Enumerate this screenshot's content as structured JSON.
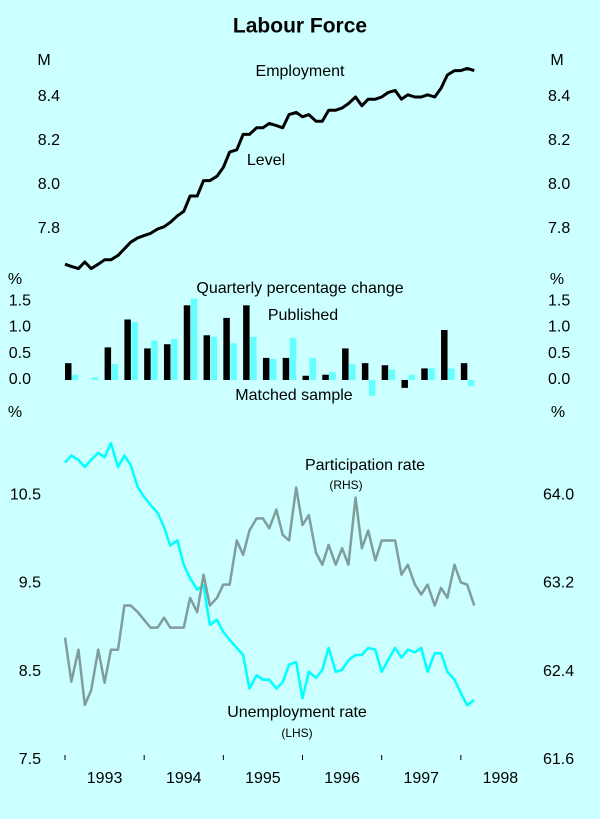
{
  "title": "Labour Force",
  "chart_data": [
    {
      "type": "line",
      "title": "Employment",
      "y_unit": "M",
      "x": [
        1993,
        1993.08,
        1993.17,
        1993.25,
        1993.33,
        1993.42,
        1993.5,
        1993.58,
        1993.67,
        1993.75,
        1993.83,
        1993.92,
        1994,
        1994.08,
        1994.17,
        1994.25,
        1994.33,
        1994.42,
        1994.5,
        1994.58,
        1994.67,
        1994.75,
        1994.83,
        1994.92,
        1995,
        1995.08,
        1995.17,
        1995.25,
        1995.33,
        1995.42,
        1995.5,
        1995.58,
        1995.67,
        1995.75,
        1995.83,
        1995.92,
        1996,
        1996.08,
        1996.17,
        1996.25,
        1996.33,
        1996.42,
        1996.5,
        1996.58,
        1996.67,
        1996.75,
        1996.83,
        1996.92,
        1997,
        1997.08,
        1997.17,
        1997.25,
        1997.33,
        1997.42,
        1997.5,
        1997.58,
        1997.67,
        1997.75,
        1997.83,
        1997.92,
        1998,
        1998.08,
        1998.17
      ],
      "xlim": [
        1993,
        1999
      ],
      "ylim": [
        7.6,
        8.6
      ],
      "yticks": [
        7.8,
        {
          "value": 8,
          "label": "8.0"
        },
        8.2,
        8.4
      ],
      "series": [
        {
          "name": "Level",
          "color": "#000000",
          "values": [
            7.64,
            7.63,
            7.62,
            7.65,
            7.62,
            7.64,
            7.66,
            7.66,
            7.68,
            7.71,
            7.74,
            7.76,
            7.77,
            7.78,
            7.8,
            7.81,
            7.83,
            7.86,
            7.88,
            7.95,
            7.95,
            8.02,
            8.02,
            8.04,
            8.08,
            8.15,
            8.16,
            8.23,
            8.23,
            8.26,
            8.26,
            8.28,
            8.27,
            8.26,
            8.32,
            8.33,
            8.31,
            8.32,
            8.29,
            8.29,
            8.34,
            8.34,
            8.35,
            8.37,
            8.4,
            8.36,
            8.39,
            8.39,
            8.4,
            8.42,
            8.43,
            8.39,
            8.41,
            8.4,
            8.4,
            8.41,
            8.4,
            8.44,
            8.5,
            8.52,
            8.52,
            8.53,
            8.52
          ]
        }
      ]
    },
    {
      "type": "bar",
      "title": "Quarterly percentage change",
      "y_unit": "%",
      "x": [
        1993,
        1993.25,
        1993.5,
        1993.75,
        1994,
        1994.25,
        1994.5,
        1994.75,
        1995,
        1995.25,
        1995.5,
        1995.75,
        1996,
        1996.25,
        1996.5,
        1996.75,
        1997,
        1997.25,
        1997.5,
        1997.75,
        1998
      ],
      "xlim": [
        1993,
        1999
      ],
      "ylim": [
        -0.4,
        1.7
      ],
      "yticks": [
        {
          "value": 0,
          "label": "0.0"
        },
        0.5,
        {
          "value": 1,
          "label": "1.0"
        },
        1.5
      ],
      "series": [
        {
          "name": "Published",
          "color": "#000000",
          "values": [
            0.32,
            0,
            0.62,
            1.15,
            0.6,
            0.68,
            1.42,
            0.85,
            1.18,
            1.42,
            0.42,
            0.42,
            0.08,
            0.1,
            0.6,
            0.32,
            0.28,
            -0.15,
            0.22,
            0.95,
            0.32
          ]
        },
        {
          "name": "Matched sample",
          "color": "#66ffff",
          "values": [
            0.1,
            0.05,
            0.3,
            1.1,
            0.75,
            0.78,
            1.55,
            0.82,
            0.7,
            0.82,
            0.4,
            0.8,
            0.42,
            0.15,
            0.3,
            -0.3,
            0.2,
            0.1,
            0.22,
            0.22,
            -0.12
          ]
        }
      ]
    },
    {
      "type": "line",
      "y_unit": "%",
      "y2_unit": "%",
      "x": [
        1993,
        1993.08,
        1993.17,
        1993.25,
        1993.33,
        1993.42,
        1993.5,
        1993.58,
        1993.67,
        1993.75,
        1993.83,
        1993.92,
        1994,
        1994.08,
        1994.17,
        1994.25,
        1994.33,
        1994.42,
        1994.5,
        1994.58,
        1994.67,
        1994.75,
        1994.83,
        1994.92,
        1995,
        1995.08,
        1995.17,
        1995.25,
        1995.33,
        1995.42,
        1995.5,
        1995.58,
        1995.67,
        1995.75,
        1995.83,
        1995.92,
        1996,
        1996.08,
        1996.17,
        1996.25,
        1996.33,
        1996.42,
        1996.5,
        1996.58,
        1996.67,
        1996.75,
        1996.83,
        1996.92,
        1997,
        1997.08,
        1997.17,
        1997.25,
        1997.33,
        1997.42,
        1997.5,
        1997.58,
        1997.67,
        1997.75,
        1997.83,
        1997.92,
        1998,
        1998.08,
        1998.17
      ],
      "xlim": [
        1993,
        1999
      ],
      "xticks": [
        1993,
        1994,
        1995,
        1996,
        1997,
        1998
      ],
      "ylim": [
        7.5,
        11.5
      ],
      "yticks": [
        7.5,
        8.5,
        9.5,
        10.5
      ],
      "y2lim": [
        61.6,
        64.8
      ],
      "y2ticks": [
        61.6,
        62.4,
        63.2,
        {
          "value": 64,
          "label": "64.0"
        }
      ],
      "series": [
        {
          "name": "Unemployment rate",
          "axis_note": "(LHS)",
          "color": "#00ffff",
          "values": [
            10.87,
            10.95,
            10.9,
            10.82,
            10.9,
            10.98,
            10.93,
            11.09,
            10.82,
            10.95,
            10.84,
            10.59,
            10.48,
            10.39,
            10.3,
            10.14,
            9.93,
            9.99,
            9.71,
            9.56,
            9.43,
            9.48,
            9.03,
            9.09,
            8.95,
            8.86,
            8.77,
            8.69,
            8.31,
            8.46,
            8.41,
            8.41,
            8.31,
            8.38,
            8.58,
            8.61,
            8.2,
            8.5,
            8.43,
            8.52,
            8.77,
            8.5,
            8.52,
            8.63,
            8.69,
            8.69,
            8.77,
            8.75,
            8.5,
            8.63,
            8.77,
            8.66,
            8.75,
            8.72,
            8.77,
            8.5,
            8.71,
            8.71,
            8.5,
            8.41,
            8.26,
            8.12,
            8.18
          ]
        },
        {
          "name": "Participation rate",
          "axis_note": "(RHS)",
          "color": "#809c9c",
          "axis": "y2",
          "values": [
            62.71,
            62.31,
            62.6,
            62.1,
            62.23,
            62.6,
            62.3,
            62.6,
            62.6,
            63,
            63,
            62.94,
            62.87,
            62.8,
            62.8,
            62.89,
            62.8,
            62.8,
            62.8,
            63.07,
            62.94,
            63.28,
            63,
            63.07,
            63.19,
            63.19,
            63.59,
            63.46,
            63.68,
            63.79,
            63.79,
            63.7,
            63.87,
            63.64,
            63.59,
            64.07,
            63.73,
            63.82,
            63.48,
            63.37,
            63.55,
            63.37,
            63.52,
            63.37,
            63.98,
            63.52,
            63.68,
            63.41,
            63.59,
            63.59,
            63.59,
            63.28,
            63.37,
            63.19,
            63.1,
            63.19,
            63,
            63.16,
            63.07,
            63.37,
            63.21,
            63.19,
            63
          ]
        }
      ]
    }
  ]
}
